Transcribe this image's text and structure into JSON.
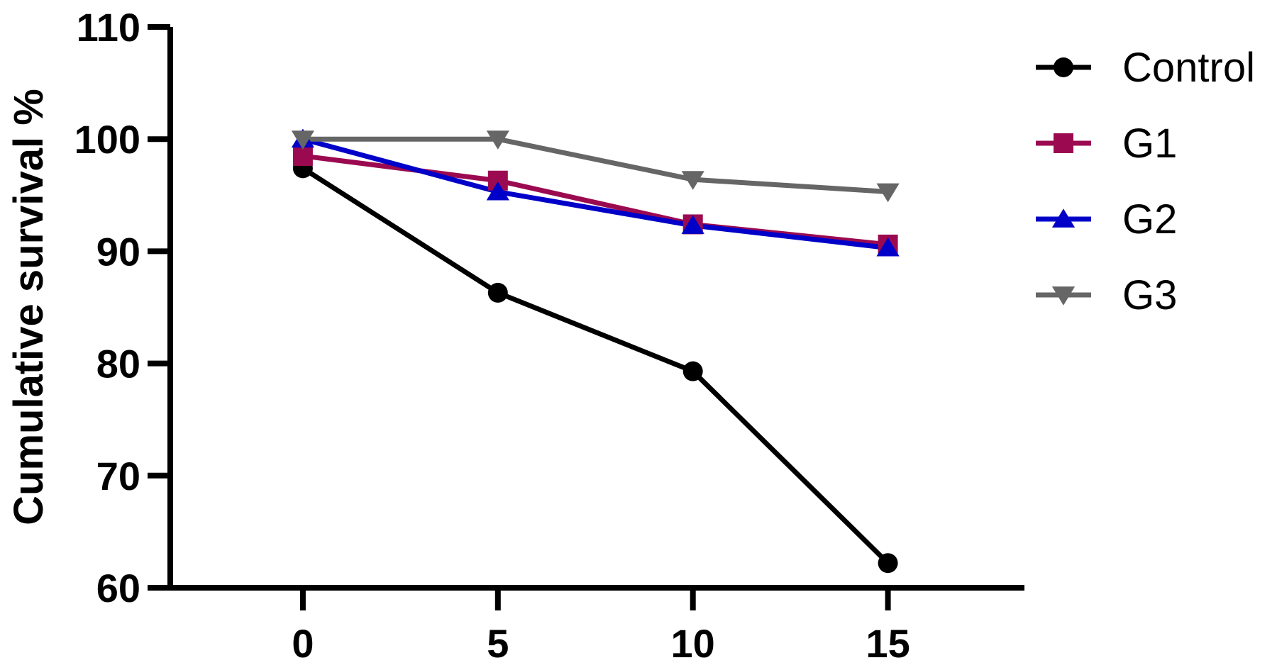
{
  "chart_data": {
    "type": "line",
    "title": "",
    "xlabel": "",
    "ylabel": "Cumulative survival %",
    "x": [
      0,
      5,
      10,
      15
    ],
    "xticks": [
      0,
      5,
      10,
      15
    ],
    "xlim": [
      -3.4,
      18.5
    ],
    "ylim": [
      60,
      110
    ],
    "yticks": [
      60,
      70,
      80,
      90,
      100,
      110
    ],
    "grid": false,
    "legend_position": "top-right",
    "series": [
      {
        "name": "Control",
        "marker": "circle",
        "color": "#000000",
        "values": [
          97.4,
          86.3,
          79.3,
          62.2
        ]
      },
      {
        "name": "G1",
        "marker": "square",
        "color": "#9b0a50",
        "values": [
          98.5,
          96.3,
          92.4,
          90.6
        ]
      },
      {
        "name": "G2",
        "marker": "triangle-up",
        "color": "#0000c8",
        "values": [
          100,
          95.3,
          92.3,
          90.3
        ]
      },
      {
        "name": "G3",
        "marker": "triangle-down",
        "color": "#666666",
        "values": [
          100,
          100,
          96.4,
          95.3
        ]
      }
    ]
  }
}
